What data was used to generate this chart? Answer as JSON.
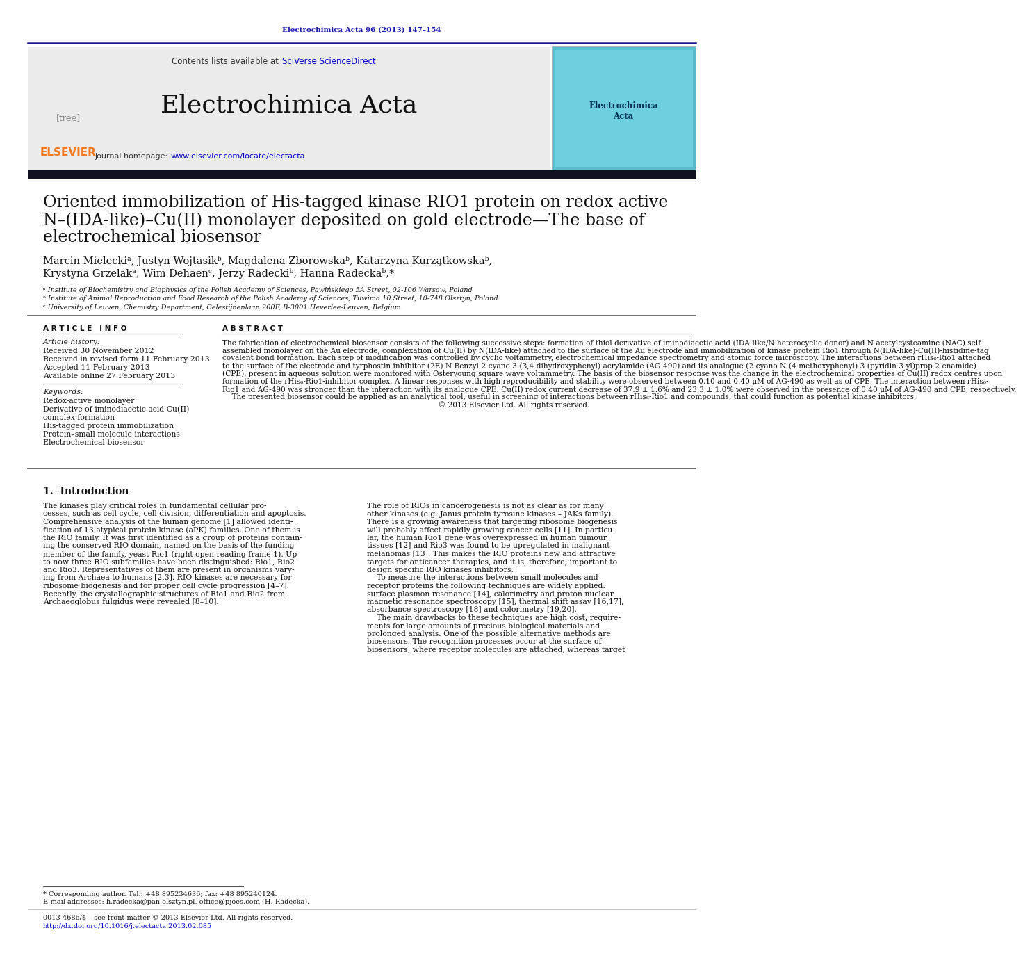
{
  "page_bg": "#ffffff",
  "top_citation": "Electrochimica Acta 96 (2013) 147–154",
  "top_citation_color": "#1a1aaa",
  "journal_name": "Electrochimica Acta",
  "homepage_url": "www.elsevier.com/locate/electacta",
  "contents_text": "Contents lists available at ",
  "sciverse_text": "SciVerse ScienceDirect",
  "article_title_line1": "Oriented immobilization of His-tagged kinase RIO1 protein on redox active",
  "article_title_line2": "N–(IDA-like)–Cu(II) monolayer deposited on gold electrode—The base of",
  "article_title_line3": "electrochemical biosensor",
  "authors_line1": "Marcin Mieleckiᵃ, Justyn Wojtasikᵇ, Magdalena Zborowskaᵇ, Katarzyna Kurzątkowskaᵇ,",
  "authors_line2": "Krystyna Grzelakᵃ, Wim Dehaenᶜ, Jerzy Radeckiᵇ, Hanna Radeckaᵇ,*",
  "affiliation_a": "ᵃ Institute of Biochemistry and Biophysics of the Polish Academy of Sciences, Pawińskiego 5A Street, 02-106 Warsaw, Poland",
  "affiliation_b": "ᵇ Institute of Animal Reproduction and Food Research of the Polish Academy of Sciences, Tuwima 10 Street, 10-748 Olsztyn, Poland",
  "affiliation_c": "ᶜ University of Leuven, Chemistry Department, Celestijnenlaan 200F, B-3001 Heverlee-Leuven, Belgium",
  "article_info_title": "A R T I C L E   I N F O",
  "abstract_title": "A B S T R A C T",
  "article_history_label": "Article history:",
  "received": "Received 30 November 2012",
  "revised": "Received in revised form 11 February 2013",
  "accepted": "Accepted 11 February 2013",
  "available": "Available online 27 February 2013",
  "keywords_label": "Keywords:",
  "keywords": [
    "Redox-active monolayer",
    "Derivative of iminodiacetic acid-Cu(II)",
    "complex formation",
    "His-tagged protein immobilization",
    "Protein–small molecule interactions",
    "Electrochemical biosensor"
  ],
  "abstract_lines": [
    "The fabrication of electrochemical biosensor consists of the following successive steps: formation of thiol derivative of iminodiacetic acid (IDA-like/N-heterocyclic donor) and N-acetylcysteamine (NAC) self-",
    "assembled monolayer on the Au electrode, complexation of Cu(II) by N(IDA-like) attached to the surface of the Au electrode and immobilization of kinase protein Rio1 through N(IDA-like)-Cu(II)-histidine-tag",
    "covalent bond formation. Each step of modification was controlled by cyclic voltammetry, electrochemical impedance spectrometry and atomic force microscopy. The interactions between rHis₆-Rio1 attached",
    "to the surface of the electrode and tyrphostin inhibitor (2E)-N-Benzyl-2-cyano-3-(3,4-dihydroxyphenyl)-acrylamide (AG-490) and its analogue (2-cyano-N-(4-methoxyphenyl)-3-(pyridin-3-yl)prop-2-enamide)",
    "(CPE), present in aqueous solution were monitored with Osteryoung square wave voltammetry. The basis of the biosensor response was the change in the electrochemical properties of Cu(II) redox centres upon",
    "formation of the rHis₆-Rio1-inhibitor complex. A linear responses with high reproducibility and stability were observed between 0.10 and 0.40 μM of AG-490 as well as of CPE. The interaction between rHis₆-",
    "Rio1 and AG-490 was stronger than the interaction with its analogue CPE. Cu(II) redox current decrease of 37.9 ± 1.6% and 23.3 ± 1.0% were observed in the presence of 0.40 μM of AG-490 and CPE, respectively.",
    "    The presented biosensor could be applied as an analytical tool, useful in screening of interactions between rHis₆-Rio1 and compounds, that could function as potential kinase inhibitors.",
    "                                                                                            © 2013 Elsevier Ltd. All rights reserved."
  ],
  "intro_heading": "1.  Introduction",
  "intro_col1_lines": [
    "The kinases play critical roles in fundamental cellular pro-",
    "cesses, such as cell cycle, cell division, differentiation and apoptosis.",
    "Comprehensive analysis of the human genome [1] allowed identi-",
    "fication of 13 atypical protein kinase (aPK) families. One of them is",
    "the RIO family. It was first identified as a group of proteins contain-",
    "ing the conserved RIO domain, named on the basis of the funding",
    "member of the family, yeast Rio1 (right open reading frame 1). Up",
    "to now three RIO subfamilies have been distinguished: Rio1, Rio2",
    "and Rio3. Representatives of them are present in organisms vary-",
    "ing from Archaea to humans [2,3]. RIO kinases are necessary for",
    "ribosome biogenesis and for proper cell cycle progression [4–7].",
    "Recently, the crystallographic structures of Rio1 and Rio2 from",
    "Archaeoglobus fulgidus were revealed [8–10]."
  ],
  "intro_col2_lines": [
    "The role of RIOs in cancerogenesis is not as clear as for many",
    "other kinases (e.g. Janus protein tyrosine kinases – JAKs family).",
    "There is a growing awareness that targeting ribosome biogenesis",
    "will probably affect rapidly growing cancer cells [11]. In particu-",
    "lar, the human Rio1 gene was overexpressed in human tumour",
    "tissues [12] and Rio3 was found to be upregulated in malignant",
    "melanomas [13]. This makes the RIO proteins new and attractive",
    "targets for anticancer therapies, and it is, therefore, important to",
    "design specific RIO kinases inhibitors.",
    "    To measure the interactions between small molecules and",
    "receptor proteins the following techniques are widely applied:",
    "surface plasmon resonance [14], calorimetry and proton nuclear",
    "magnetic resonance spectroscopy [15], thermal shift assay [16,17],",
    "absorbance spectroscopy [18] and colorimetry [19,20].",
    "    The main drawbacks to these techniques are high cost, require-",
    "ments for large amounts of precious biological materials and",
    "prolonged analysis. One of the possible alternative methods are",
    "biosensors. The recognition processes occur at the surface of",
    "biosensors, where receptor molecules are attached, whereas target"
  ],
  "footnote_star": "* Corresponding author. Tel.: +48 895234636; fax: +48 895240124.",
  "footnote_email": "E-mail addresses: h.radecka@pan.olsztyn.pl, office@pjoes.com (H. Radecka).",
  "footnote_copy": "0013-4686/$ – see front matter © 2013 Elsevier Ltd. All rights reserved.",
  "footnote_doi": "http://dx.doi.org/10.1016/j.electacta.2013.02.085",
  "link_color": "#0000cc",
  "elsevier_orange": "#f47920",
  "dark_bar_color": "#111122"
}
